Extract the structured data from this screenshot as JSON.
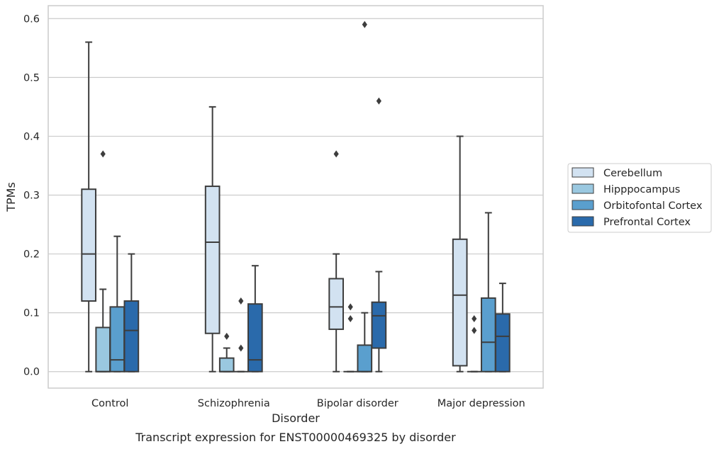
{
  "chart_data": {
    "type": "box",
    "title": "",
    "caption": "Transcript expression for ENST00000469325 by disorder",
    "xlabel": "Disorder",
    "ylabel": "TPMs",
    "ylim": [
      -0.028,
      0.622
    ],
    "yticks": [
      0.0,
      0.1,
      0.2,
      0.3,
      0.4,
      0.5,
      0.6
    ],
    "ytick_labels": [
      "0.0",
      "0.1",
      "0.2",
      "0.3",
      "0.4",
      "0.5",
      "0.6"
    ],
    "grid": "horizontal",
    "legend_position": "right",
    "categories": [
      "Control",
      "Schizophrenia",
      "Bipolar disorder",
      "Major depression"
    ],
    "series": [
      {
        "name": "Cerebellum",
        "color": "#d2e2f1",
        "boxes": [
          {
            "whisker_low": 0.0,
            "q1": 0.12,
            "median": 0.2,
            "q3": 0.31,
            "whisker_high": 0.56,
            "outliers": []
          },
          {
            "whisker_low": 0.0,
            "q1": 0.065,
            "median": 0.22,
            "q3": 0.315,
            "whisker_high": 0.45,
            "outliers": []
          },
          {
            "whisker_low": 0.0,
            "q1": 0.072,
            "median": 0.11,
            "q3": 0.158,
            "whisker_high": 0.2,
            "outliers": [
              0.37
            ]
          },
          {
            "whisker_low": 0.0,
            "q1": 0.01,
            "median": 0.13,
            "q3": 0.225,
            "whisker_high": 0.4,
            "outliers": []
          }
        ]
      },
      {
        "name": "Hipppocampus",
        "color": "#9ac8e0",
        "boxes": [
          {
            "whisker_low": 0.0,
            "q1": 0.0,
            "median": 0.0,
            "q3": 0.075,
            "whisker_high": 0.14,
            "outliers": [
              0.37
            ]
          },
          {
            "whisker_low": 0.0,
            "q1": 0.0,
            "median": 0.0,
            "q3": 0.023,
            "whisker_high": 0.04,
            "outliers": [
              0.06
            ]
          },
          {
            "whisker_low": 0.0,
            "q1": 0.0,
            "median": 0.0,
            "q3": 0.0,
            "whisker_high": 0.0,
            "outliers": [
              0.11,
              0.09
            ]
          },
          {
            "whisker_low": 0.0,
            "q1": 0.0,
            "median": 0.0,
            "q3": 0.0,
            "whisker_high": 0.0,
            "outliers": [
              0.09,
              0.07
            ]
          }
        ]
      },
      {
        "name": "Orbitofontal Cortex",
        "color": "#5a9fce",
        "boxes": [
          {
            "whisker_low": 0.0,
            "q1": 0.0,
            "median": 0.02,
            "q3": 0.11,
            "whisker_high": 0.23,
            "outliers": []
          },
          {
            "whisker_low": 0.0,
            "q1": 0.0,
            "median": 0.0,
            "q3": 0.0,
            "whisker_high": 0.0,
            "outliers": [
              0.12,
              0.04
            ]
          },
          {
            "whisker_low": 0.0,
            "q1": 0.0,
            "median": 0.0,
            "q3": 0.045,
            "whisker_high": 0.1,
            "outliers": [
              0.59
            ]
          },
          {
            "whisker_low": 0.0,
            "q1": 0.0,
            "median": 0.05,
            "q3": 0.125,
            "whisker_high": 0.27,
            "outliers": []
          }
        ]
      },
      {
        "name": "Prefrontal Cortex",
        "color": "#2a6aab",
        "boxes": [
          {
            "whisker_low": 0.0,
            "q1": 0.0,
            "median": 0.07,
            "q3": 0.12,
            "whisker_high": 0.2,
            "outliers": []
          },
          {
            "whisker_low": 0.0,
            "q1": 0.0,
            "median": 0.02,
            "q3": 0.115,
            "whisker_high": 0.18,
            "outliers": []
          },
          {
            "whisker_low": 0.0,
            "q1": 0.04,
            "median": 0.095,
            "q3": 0.118,
            "whisker_high": 0.17,
            "outliers": [
              0.46
            ]
          },
          {
            "whisker_low": 0.0,
            "q1": 0.0,
            "median": 0.06,
            "q3": 0.098,
            "whisker_high": 0.15,
            "outliers": []
          }
        ]
      }
    ]
  },
  "colors": {
    "grid": "#cccccc",
    "frame": "#cccccc",
    "line": "#3d3d3d"
  }
}
